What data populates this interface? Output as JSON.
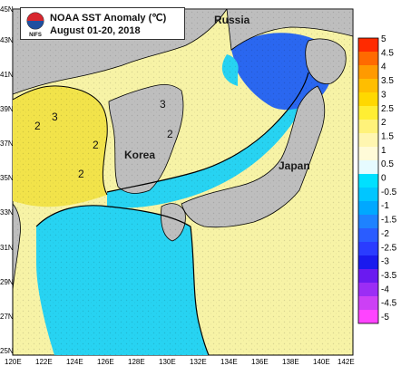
{
  "title": {
    "line1": "NOAA SST Anomaly (℃)",
    "line2": "August 01-20, 2018",
    "logo_text": "NIFS"
  },
  "places": {
    "russia": "Russia",
    "korea": "Korea",
    "japan": "Japan"
  },
  "contour_labels": [
    "3",
    "2",
    "2",
    "2",
    "2",
    "3"
  ],
  "lat_ticks": [
    "45N",
    "43N",
    "41N",
    "39N",
    "37N",
    "35N",
    "33N",
    "31N",
    "29N",
    "27N",
    "25N"
  ],
  "lon_ticks": [
    "120E",
    "122E",
    "124E",
    "126E",
    "128E",
    "130E",
    "132E",
    "134E",
    "136E",
    "138E",
    "140E",
    "142E"
  ],
  "colorbar": {
    "labels": [
      "5",
      "4.5",
      "4",
      "3.5",
      "3",
      "2.5",
      "2",
      "1.5",
      "1",
      "0.5",
      "0",
      "-0.5",
      "-1",
      "-1.5",
      "-2",
      "-2.5",
      "-3",
      "-3.5",
      "-4",
      "-4.5",
      "-5"
    ],
    "colors": [
      "#ff2a00",
      "#ff6a00",
      "#ff9a00",
      "#ffbe00",
      "#ffd800",
      "#ffee33",
      "#fff27a",
      "#fff6b0",
      "#fffbd8",
      "#e6fbff",
      "#00e0ff",
      "#00c6ff",
      "#00a8ff",
      "#1e82ff",
      "#2a5cff",
      "#2a3cff",
      "#1a1aee",
      "#6a1af0",
      "#9b2df5",
      "#cc40f5",
      "#ff44ff"
    ]
  },
  "colors": {
    "land": "#bebebe",
    "warm_fill": "#f7f3a6",
    "warm_strong": "#f2e34a",
    "cool_fill": "#27d3f2",
    "cool_strong": "#2a67f0"
  }
}
